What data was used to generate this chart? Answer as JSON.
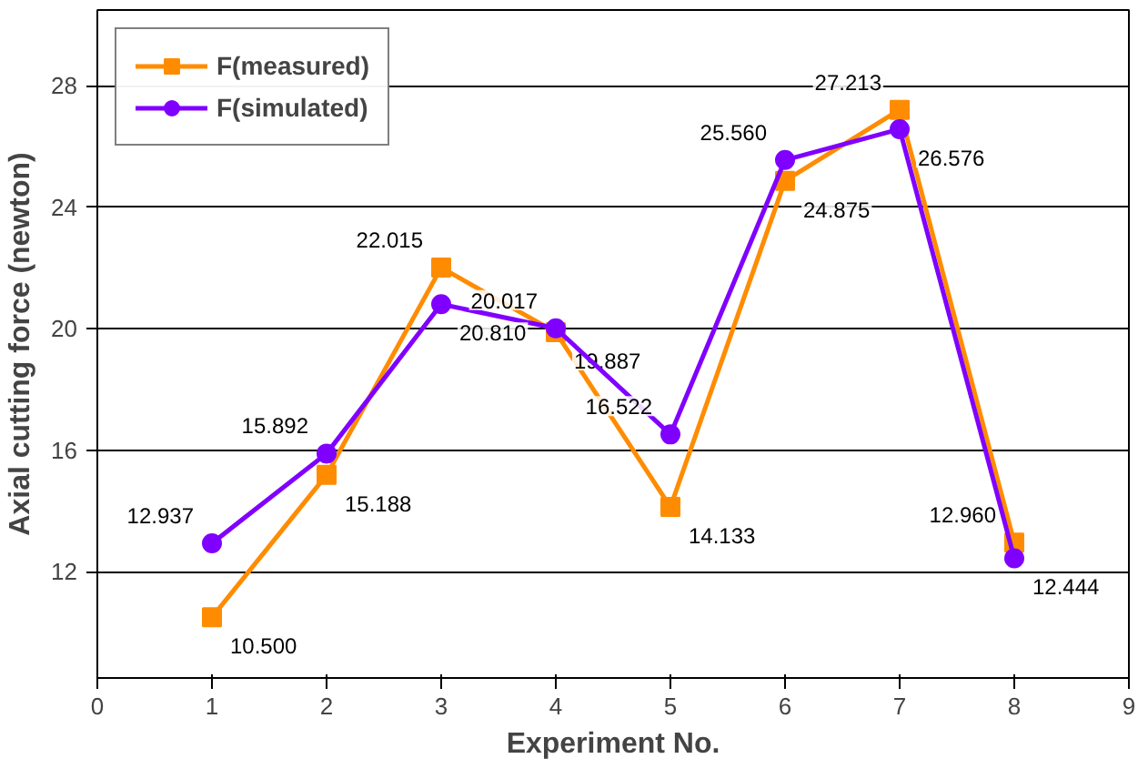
{
  "chart_data": {
    "type": "line",
    "xlabel": "Experiment No.",
    "ylabel": "Axial cutting force (newton)",
    "x": [
      1,
      2,
      3,
      4,
      5,
      6,
      7,
      8
    ],
    "series": [
      {
        "name": "F(measured)",
        "color": "#ff8c00",
        "marker": "square",
        "values": [
          10.5,
          15.188,
          22.015,
          19.887,
          14.133,
          24.875,
          27.213,
          12.96
        ],
        "value_labels": [
          "10.500",
          "15.188",
          "22.015",
          "19.887",
          "14.133",
          "24.875",
          "27.213",
          "12.960"
        ]
      },
      {
        "name": "F(simulated)",
        "color": "#8000ff",
        "marker": "circle",
        "values": [
          12.937,
          15.892,
          20.81,
          20.017,
          16.522,
          25.56,
          26.576,
          12.444
        ],
        "value_labels": [
          "12.937",
          "15.892",
          "20.810",
          "20.017",
          "16.522",
          "25.560",
          "26.576",
          "12.444"
        ]
      }
    ],
    "xlim": [
      0,
      9
    ],
    "xticks": [
      0,
      1,
      2,
      3,
      4,
      5,
      6,
      7,
      8,
      9
    ],
    "ylim": [
      8.5,
      30.5
    ],
    "yticks": [
      12,
      16,
      20,
      24,
      28
    ],
    "grid": "y",
    "legend": "top left",
    "line_style": "solid"
  }
}
